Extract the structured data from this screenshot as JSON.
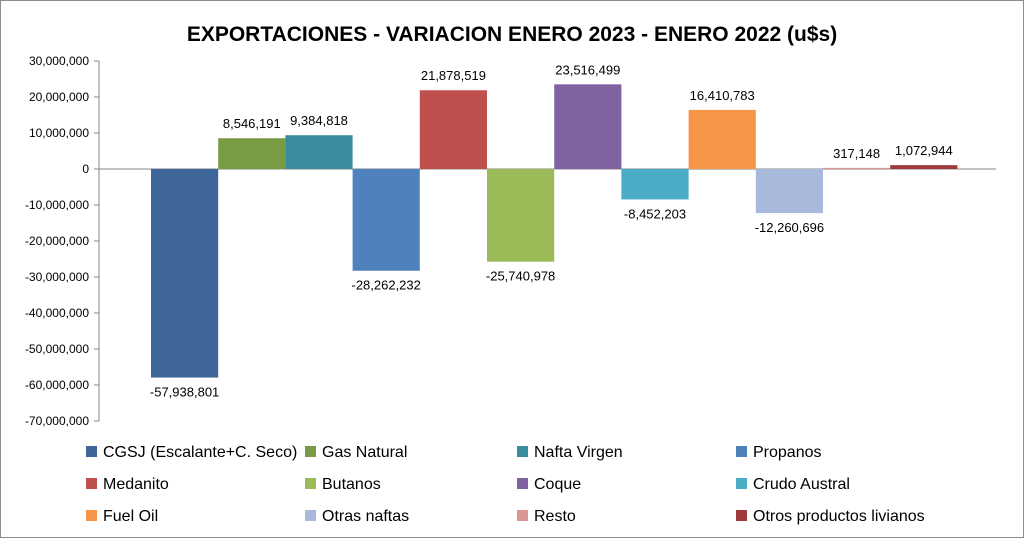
{
  "chart_data": {
    "type": "bar",
    "title": "EXPORTACIONES - VARIACION ENERO 2023 - ENERO 2022 (u$s)",
    "xlabel": "",
    "ylabel": "",
    "ylim": [
      -70000000,
      30000000
    ],
    "ytick_step": 10000000,
    "yticks": [
      "30,000,000",
      "20,000,000",
      "10,000,000",
      "0",
      "-10,000,000",
      "-20,000,000",
      "-30,000,000",
      "-40,000,000",
      "-50,000,000",
      "-60,000,000",
      "-70,000,000"
    ],
    "grid": false,
    "legend_position": "bottom",
    "series": [
      {
        "name": "CGSJ (Escalante+C. Seco)",
        "value": -57938801,
        "label": "-57,938,801",
        "color": "#3E6699"
      },
      {
        "name": "Gas Natural",
        "value": 8546191,
        "label": "8,546,191",
        "color": "#789B44"
      },
      {
        "name": "Nafta Virgen",
        "value": 9384818,
        "label": "9,384,818",
        "color": "#3A8D9E"
      },
      {
        "name": "Propanos",
        "value": -28262232,
        "label": "-28,262,232",
        "color": "#4F81BD"
      },
      {
        "name": "Medanito",
        "value": 21878519,
        "label": "21,878,519",
        "color": "#C0504D"
      },
      {
        "name": "Butanos",
        "value": -25740978,
        "label": "-25,740,978",
        "color": "#9BBB59"
      },
      {
        "name": "Coque",
        "value": 23516499,
        "label": "23,516,499",
        "color": "#8064A2"
      },
      {
        "name": "Crudo Austral",
        "value": -8452203,
        "label": "-8,452,203",
        "color": "#4BACC6"
      },
      {
        "name": "Fuel Oil",
        "value": 16410783,
        "label": "16,410,783",
        "color": "#F79646"
      },
      {
        "name": "Otras naftas",
        "value": -12260696,
        "label": "-12,260,696",
        "color": "#A8B9DB"
      },
      {
        "name": "Resto",
        "value": 317148,
        "label": "317,148",
        "color": "#D99694"
      },
      {
        "name": "Otros productos livianos",
        "value": 1072944,
        "label": "1,072,944",
        "color": "#A0393B"
      }
    ]
  }
}
